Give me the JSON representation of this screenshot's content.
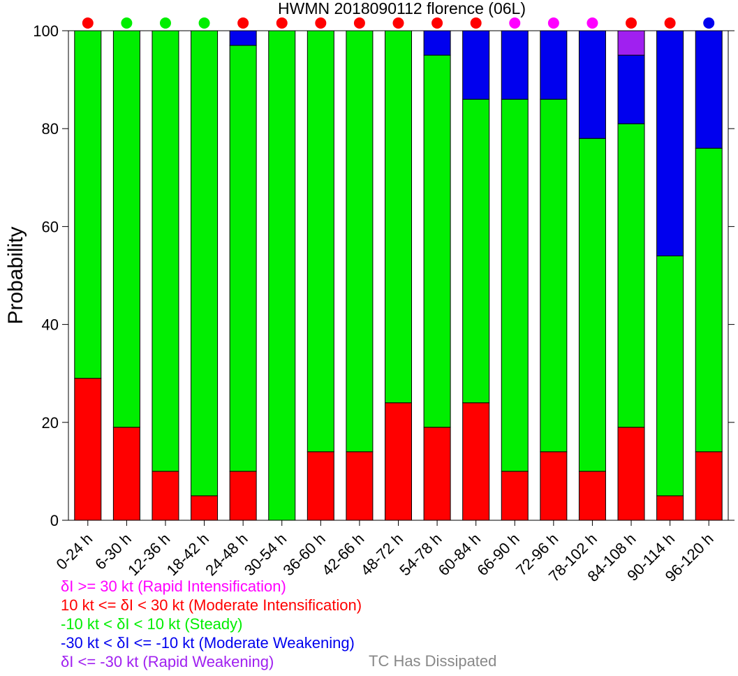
{
  "chart_data": {
    "type": "bar",
    "stacked": true,
    "title": "HWMN 2018090112 florence (06L)",
    "ylabel": "Probability",
    "ylim": [
      0,
      100
    ],
    "yticks": [
      0,
      20,
      40,
      60,
      80,
      100
    ],
    "categories": [
      "0-24 h",
      "6-30 h",
      "12-36 h",
      "18-42 h",
      "24-48 h",
      "30-54 h",
      "36-60 h",
      "42-66 h",
      "48-72 h",
      "54-78 h",
      "60-84 h",
      "66-90 h",
      "72-96 h",
      "78-102 h",
      "84-108 h",
      "90-114 h",
      "96-120 h"
    ],
    "series": [
      {
        "name": "δI >= 30 kt (Rapid Intensification)",
        "color": "#ff00ff",
        "values": [
          0,
          0,
          0,
          0,
          0,
          0,
          0,
          0,
          0,
          0,
          0,
          0,
          0,
          0,
          0,
          0,
          0
        ]
      },
      {
        "name": "10 kt <= δI < 30 kt (Moderate Intensification)",
        "color": "#ff0000",
        "values": [
          29,
          19,
          10,
          5,
          10,
          0,
          14,
          14,
          24,
          19,
          24,
          10,
          14,
          10,
          19,
          5,
          14
        ]
      },
      {
        "name": "-10 kt < δI < 10 kt (Steady)",
        "color": "#00ee00",
        "values": [
          71,
          81,
          90,
          95,
          87,
          100,
          86,
          86,
          76,
          76,
          62,
          76,
          72,
          68,
          62,
          49,
          62
        ]
      },
      {
        "name": "-30 kt < δI <= -10 kt (Moderate Weakening)",
        "color": "#0000ee",
        "values": [
          0,
          0,
          0,
          0,
          3,
          0,
          0,
          0,
          0,
          5,
          14,
          14,
          14,
          22,
          14,
          46,
          24
        ]
      },
      {
        "name": "δI <= -30 kt (Rapid Weakening)",
        "color": "#a020f0",
        "values": [
          0,
          0,
          0,
          0,
          0,
          0,
          0,
          0,
          0,
          0,
          0,
          0,
          0,
          0,
          5,
          0,
          0
        ]
      }
    ],
    "top_markers": [
      "#ff0000",
      "#00ee00",
      "#00ee00",
      "#00ee00",
      "#ff0000",
      "#ff0000",
      "#ff0000",
      "#ff0000",
      "#ff0000",
      "#ff0000",
      "#ff0000",
      "#ff00ff",
      "#ff00ff",
      "#ff00ff",
      "#ff0000",
      "#ff0000",
      "#0000ee"
    ]
  },
  "legend": {
    "items": [
      {
        "text": "δI >= 30 kt (Rapid Intensification)",
        "color": "#ff00ff"
      },
      {
        "text": "10 kt <= δI < 30 kt (Moderate Intensification)",
        "color": "#ff0000"
      },
      {
        "text": "-10 kt < δI < 10 kt (Steady)",
        "color": "#00ee00"
      },
      {
        "text": "-30 kt < δI <= -10 kt (Moderate Weakening)",
        "color": "#0000ee"
      },
      {
        "text": "δI <= -30 kt (Rapid Weakening)",
        "color": "#a020f0"
      }
    ],
    "dissipated": {
      "text": "TC Has Dissipated",
      "color": "#888888"
    }
  }
}
